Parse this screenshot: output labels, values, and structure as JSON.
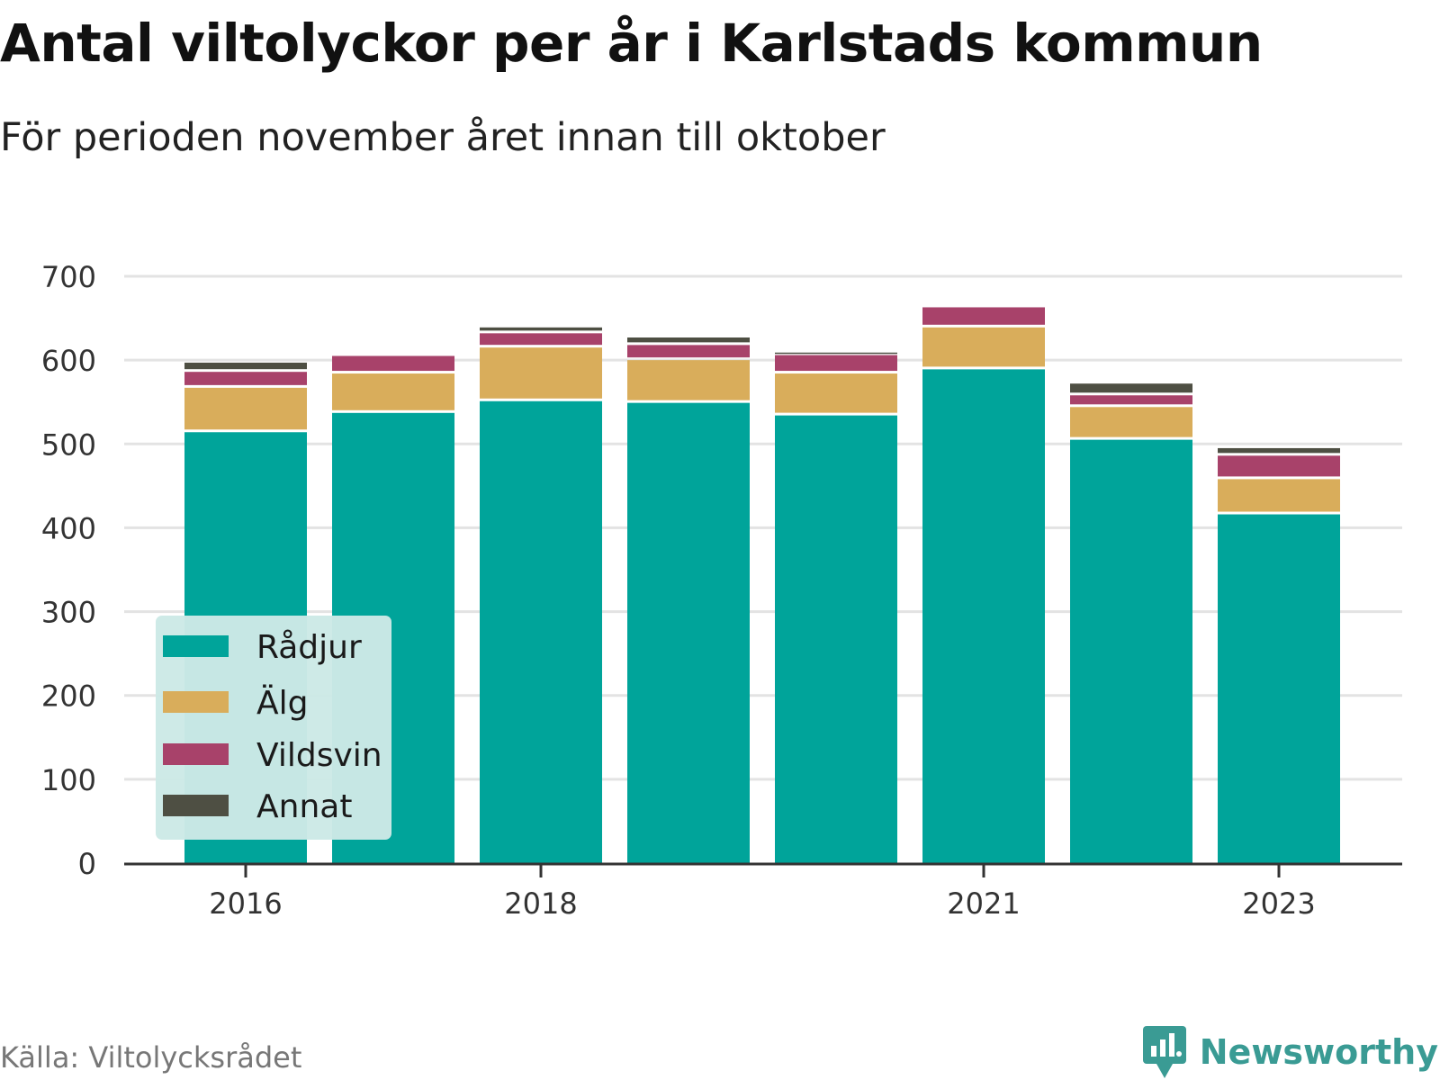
{
  "title": "Antal viltolyckor per år i Karlstads kommun",
  "subtitle": "För perioden november året innan till oktober",
  "source": "Källa: Viltolycksrådet",
  "brand": {
    "name": "Newsworthy",
    "icon": "newsworthy-logo-icon",
    "color": "#3a9b94"
  },
  "colors": {
    "background": "#ffffff",
    "grid": "#e3e3e3",
    "axis": "#333333",
    "legend_bg": "#cce9e6"
  },
  "chart_data": {
    "type": "bar",
    "stacked": true,
    "title": "Antal viltolyckor per år i Karlstads kommun",
    "subtitle": "För perioden november året innan till oktober",
    "categories": [
      "2016",
      "2017",
      "2018",
      "2019",
      "2020",
      "2021",
      "2022",
      "2023"
    ],
    "x_tick_labels": [
      "2016",
      "",
      "2018",
      "",
      "",
      "2021",
      "",
      "2023"
    ],
    "series": [
      {
        "name": "Rådjur",
        "color": "#00a49a",
        "values": [
          514,
          537,
          551,
          549,
          534,
          589,
          505,
          416
        ]
      },
      {
        "name": "Älg",
        "color": "#d9ad5b",
        "values": [
          53,
          47,
          64,
          51,
          50,
          50,
          39,
          42
        ]
      },
      {
        "name": "Vildsvin",
        "color": "#a8426a",
        "values": [
          19,
          21,
          17,
          18,
          22,
          24,
          14,
          28
        ]
      },
      {
        "name": "Annat",
        "color": "#4e4f43",
        "values": [
          11,
          0,
          7,
          9,
          3,
          0,
          14,
          9
        ]
      }
    ],
    "yticks": [
      0,
      100,
      200,
      300,
      400,
      500,
      600,
      700
    ],
    "ylim": [
      0,
      700
    ],
    "xlabel": "",
    "ylabel": "",
    "grid": true,
    "legend": {
      "position": "bottom-left",
      "entries": [
        "Rådjur",
        "Älg",
        "Vildsvin",
        "Annat"
      ]
    }
  }
}
